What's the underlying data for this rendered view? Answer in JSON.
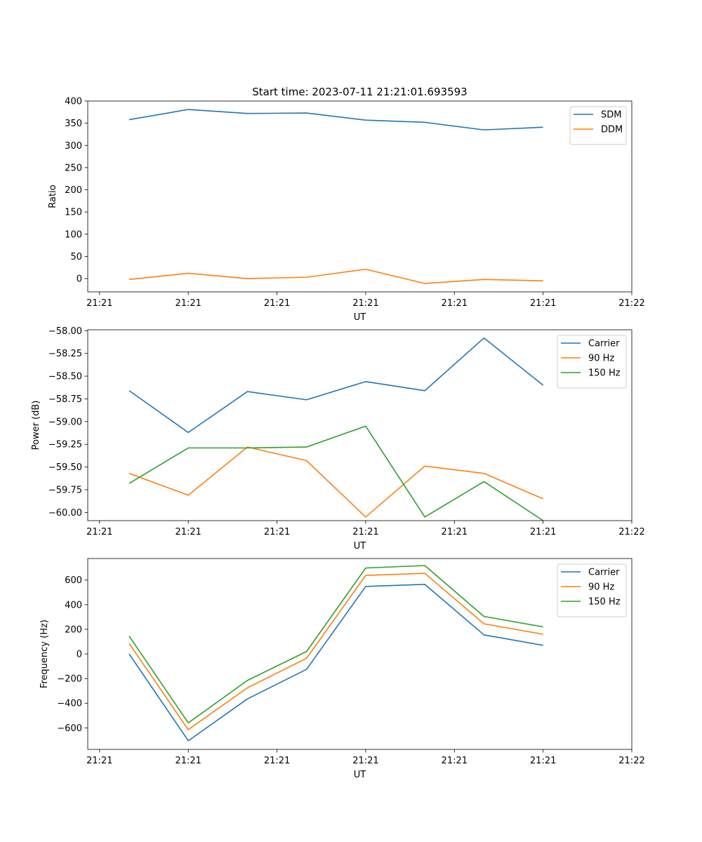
{
  "figure_title": "Start time: 2023-07-11 21:21:01.693593",
  "colors": {
    "c0": "#1f77b4",
    "c1": "#ff7f0e",
    "c2": "#2ca02c"
  },
  "chart_data": [
    {
      "type": "line",
      "title": "Start time: 2023-07-11 21:21:01.693593",
      "xlabel": "UT",
      "ylabel": "Ratio",
      "x_tick_labels": [
        "21:21",
        "21:21",
        "21:21",
        "21:21",
        "21:21",
        "21:21",
        "21:22"
      ],
      "x_ticks": [
        -0.5,
        1.0,
        2.5,
        4.0,
        5.5,
        7.0,
        8.5
      ],
      "xlim": [
        -0.7,
        8.5
      ],
      "ylim": [
        -30,
        400
      ],
      "y_ticks": [
        0,
        50,
        100,
        150,
        200,
        250,
        300,
        350,
        400
      ],
      "y_tick_labels": [
        "0",
        "50",
        "100",
        "150",
        "200",
        "250",
        "300",
        "350",
        "400"
      ],
      "x": [
        0,
        1,
        2,
        3,
        4,
        5,
        6,
        7
      ],
      "legend_position": "top-right",
      "series": [
        {
          "name": "SDM",
          "color": "#1f77b4",
          "values": [
            358,
            381,
            372,
            373,
            357,
            352,
            335,
            341
          ]
        },
        {
          "name": "DDM",
          "color": "#ff7f0e",
          "values": [
            -2,
            12,
            0,
            3,
            21,
            -11,
            -2,
            -5
          ]
        }
      ]
    },
    {
      "type": "line",
      "title": "",
      "xlabel": "UT",
      "ylabel": "Power (dB)",
      "x_tick_labels": [
        "21:21",
        "21:21",
        "21:21",
        "21:21",
        "21:21",
        "21:21",
        "21:22"
      ],
      "x_ticks": [
        -0.5,
        1.0,
        2.5,
        4.0,
        5.5,
        7.0,
        8.5
      ],
      "xlim": [
        -0.7,
        8.5
      ],
      "ylim": [
        -60.09,
        -57.99
      ],
      "y_ticks": [
        -60.0,
        -59.75,
        -59.5,
        -59.25,
        -59.0,
        -58.75,
        -58.5,
        -58.25,
        -58.0
      ],
      "y_tick_labels": [
        "−60.00",
        "−59.75",
        "−59.50",
        "−59.25",
        "−59.00",
        "−58.75",
        "−58.50",
        "−58.25",
        "−58.00"
      ],
      "x": [
        0,
        1,
        2,
        3,
        4,
        5,
        6,
        7
      ],
      "legend_position": "top-right",
      "series": [
        {
          "name": "Carrier",
          "color": "#1f77b4",
          "values": [
            -58.66,
            -59.12,
            -58.67,
            -58.76,
            -58.56,
            -58.66,
            -58.08,
            -58.6
          ]
        },
        {
          "name": "90 Hz",
          "color": "#ff7f0e",
          "values": [
            -59.57,
            -59.81,
            -59.28,
            -59.43,
            -60.05,
            -59.49,
            -59.57,
            -59.85
          ]
        },
        {
          "name": "150 Hz",
          "color": "#2ca02c",
          "values": [
            -59.68,
            -59.29,
            -59.29,
            -59.28,
            -59.05,
            -60.05,
            -59.66,
            -60.09
          ]
        }
      ]
    },
    {
      "type": "line",
      "title": "",
      "xlabel": "UT",
      "ylabel": "Frequency (Hz)",
      "x_tick_labels": [
        "21:21",
        "21:21",
        "21:21",
        "21:21",
        "21:21",
        "21:21",
        "21:22"
      ],
      "x_ticks": [
        -0.5,
        1.0,
        2.5,
        4.0,
        5.5,
        7.0,
        8.5
      ],
      "xlim": [
        -0.7,
        8.5
      ],
      "ylim": [
        -775,
        775
      ],
      "y_ticks": [
        -600,
        -400,
        -200,
        0,
        200,
        400,
        600
      ],
      "y_tick_labels": [
        "−600",
        "−400",
        "−200",
        "0",
        "200",
        "400",
        "600"
      ],
      "x": [
        0,
        1,
        2,
        3,
        4,
        5,
        6,
        7
      ],
      "legend_position": "top-right",
      "series": [
        {
          "name": "Carrier",
          "color": "#1f77b4",
          "values": [
            0,
            -705,
            -365,
            -125,
            548,
            565,
            155,
            70
          ]
        },
        {
          "name": "90 Hz",
          "color": "#ff7f0e",
          "values": [
            85,
            -615,
            -275,
            -35,
            638,
            655,
            245,
            160
          ]
        },
        {
          "name": "150 Hz",
          "color": "#2ca02c",
          "values": [
            145,
            -560,
            -215,
            20,
            698,
            718,
            305,
            220
          ]
        }
      ]
    }
  ]
}
